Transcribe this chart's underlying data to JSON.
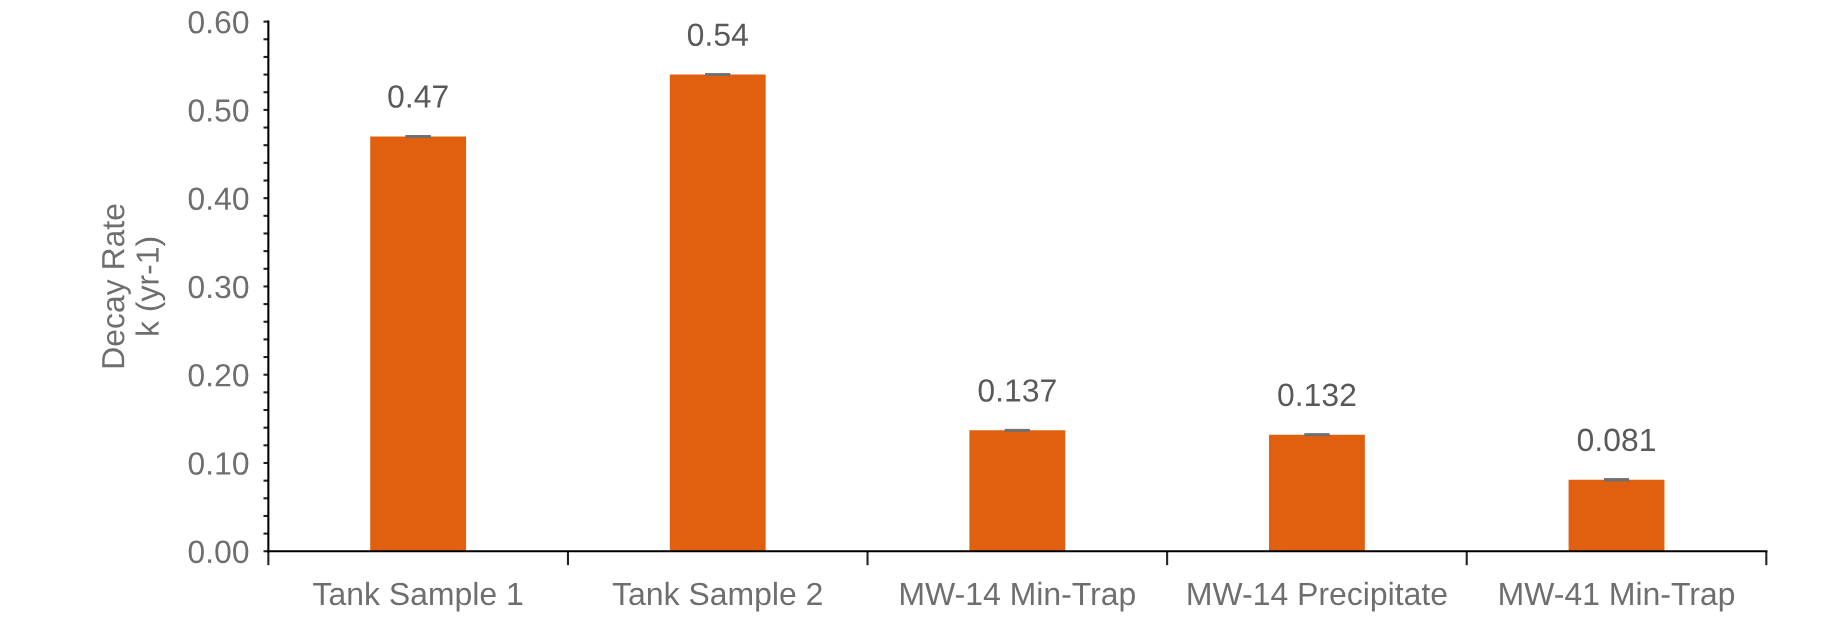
{
  "chart_data": {
    "type": "bar",
    "ylabel": "Decay Rate\nk (yr-1)",
    "categories": [
      "Tank Sample 1",
      "Tank Sample 2",
      "MW-14 Min-Trap",
      "MW-14 Precipitate",
      "MW-41 Min-Trap"
    ],
    "values": [
      0.47,
      0.54,
      0.137,
      0.132,
      0.081
    ],
    "errors": [
      0,
      0,
      0,
      0,
      0
    ],
    "color": "#e06010",
    "data_labels": true,
    "ylim": [
      0,
      0.6
    ],
    "yticks": [
      {
        "value": 0,
        "label": "0.00"
      },
      {
        "value": 0.02,
        "label": null
      },
      {
        "value": 0.04,
        "label": null
      },
      {
        "value": 0.06,
        "label": null
      },
      {
        "value": 0.08,
        "label": null
      },
      {
        "value": 0.1,
        "label": "0.10"
      },
      {
        "value": 0.12,
        "label": null
      },
      {
        "value": 0.14,
        "label": null
      },
      {
        "value": 0.16,
        "label": null
      },
      {
        "value": 0.18,
        "label": null
      },
      {
        "value": 0.2,
        "label": "0.20"
      },
      {
        "value": 0.22,
        "label": null
      },
      {
        "value": 0.24,
        "label": null
      },
      {
        "value": 0.26,
        "label": null
      },
      {
        "value": 0.28,
        "label": null
      },
      {
        "value": 0.3,
        "label": "0.30"
      },
      {
        "value": 0.32,
        "label": null
      },
      {
        "value": 0.34,
        "label": null
      },
      {
        "value": 0.36,
        "label": null
      },
      {
        "value": 0.38,
        "label": null
      },
      {
        "value": 0.4,
        "label": "0.40"
      },
      {
        "value": 0.42,
        "label": null
      },
      {
        "value": 0.44,
        "label": null
      },
      {
        "value": 0.46,
        "label": null
      },
      {
        "value": 0.48,
        "label": null
      },
      {
        "value": 0.5,
        "label": "0.50"
      },
      {
        "value": 0.52,
        "label": null
      },
      {
        "value": 0.54,
        "label": null
      },
      {
        "value": 0.56,
        "label": null
      },
      {
        "value": 0.58,
        "label": null
      },
      {
        "value": 0.6,
        "label": "0.60"
      }
    ],
    "grid": false,
    "legend": false
  }
}
